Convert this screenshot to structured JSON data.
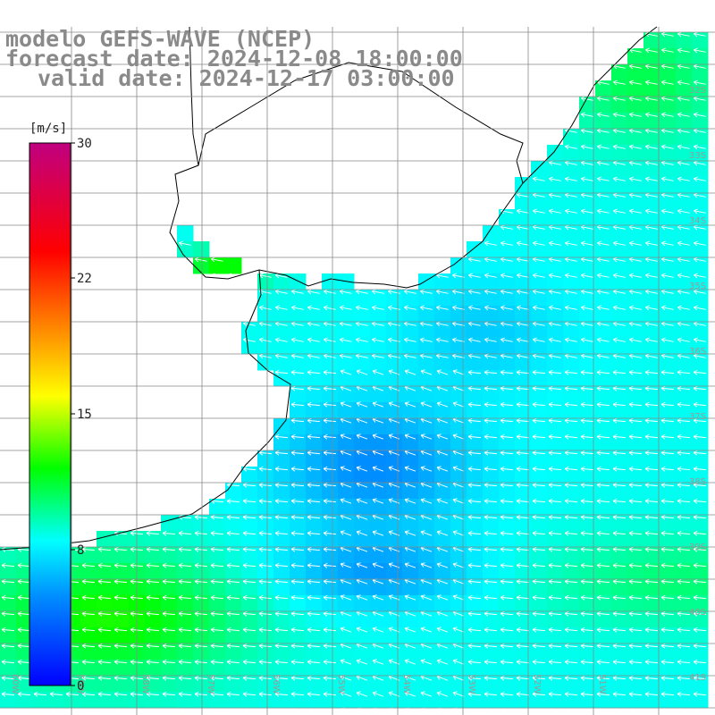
{
  "header": {
    "model": "modelo GEFS-WAVE (NCEP)",
    "forecast": "forecast date: 2024-12-08 18:00:00",
    "valid": "valid date: 2024-12-17 03:00:00"
  },
  "colorbar": {
    "unit": "[m/s]",
    "min": 0,
    "max": 30,
    "ticks": [
      "30",
      "22",
      "15",
      "8",
      "0"
    ],
    "stops": [
      {
        "v": 0,
        "c": "#0000ff"
      },
      {
        "v": 5,
        "c": "#0090ff"
      },
      {
        "v": 8,
        "c": "#00ffff"
      },
      {
        "v": 12,
        "c": "#00ff00"
      },
      {
        "v": 16,
        "c": "#ffff00"
      },
      {
        "v": 20,
        "c": "#ff8000"
      },
      {
        "v": 24,
        "c": "#ff0000"
      },
      {
        "v": 30,
        "c": "#c00080"
      }
    ]
  },
  "map": {
    "lat_labels": [
      "32S",
      "33S",
      "34S",
      "35S",
      "36S",
      "37S",
      "38S",
      "39S",
      "40S",
      "41S"
    ],
    "lon_labels": [
      "60W",
      "59W",
      "58W",
      "57W",
      "56W",
      "55W",
      "54W",
      "53W",
      "52W",
      "51W"
    ],
    "land_color": "#ffffff",
    "grid_color": "#888888"
  }
}
